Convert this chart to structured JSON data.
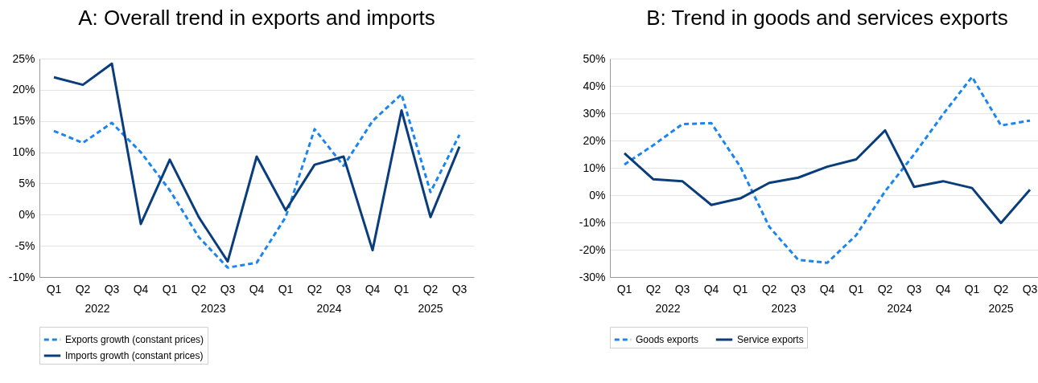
{
  "chart_data": [
    {
      "type": "line",
      "title": "A: Overall trend in exports and imports",
      "categories": [
        "Q1",
        "Q2",
        "Q3",
        "Q4",
        "Q1",
        "Q2",
        "Q3",
        "Q4",
        "Q1",
        "Q2",
        "Q3",
        "Q4",
        "Q1",
        "Q2",
        "Q3"
      ],
      "annotations": [
        "2022",
        "2023",
        "2024",
        "2025"
      ],
      "series": [
        {
          "name": "Exports growth (constant prices)",
          "color": "#1a85f0",
          "line_style": "dashed",
          "values": [
            13.4,
            11.5,
            14.7,
            10.0,
            3.9,
            -3.6,
            -8.5,
            -7.7,
            -0.4,
            13.7,
            7.8,
            15.0,
            19.3,
            3.6,
            12.8
          ]
        },
        {
          "name": "Imports growth (constant prices)",
          "color": "#0a3d7c",
          "line_style": "solid",
          "values": [
            22.0,
            20.8,
            24.2,
            -1.5,
            8.8,
            -0.4,
            -7.5,
            9.3,
            0.7,
            8.0,
            9.3,
            -5.7,
            16.7,
            -0.4,
            10.9
          ]
        }
      ],
      "ylim": [
        -10,
        25
      ],
      "yticks": [
        {
          "value": -10,
          "label": "-10%"
        },
        {
          "value": -5,
          "label": "-5%"
        },
        {
          "value": 0,
          "label": "0%"
        },
        {
          "value": 5,
          "label": "5%"
        },
        {
          "value": 10,
          "label": "10%"
        },
        {
          "value": 15,
          "label": "15%"
        },
        {
          "value": 20,
          "label": "20%"
        },
        {
          "value": 25,
          "label": "25%"
        }
      ],
      "grid": "y",
      "legend": "bottom",
      "marker": "none"
    },
    {
      "type": "line",
      "title": "B: Trend in goods and services exports",
      "categories": [
        "Q1",
        "Q2",
        "Q3",
        "Q4",
        "Q1",
        "Q2",
        "Q3",
        "Q4",
        "Q1",
        "Q2",
        "Q3",
        "Q4",
        "Q1",
        "Q2",
        "Q3"
      ],
      "annotations": [
        "2022",
        "2023",
        "2024",
        "2025"
      ],
      "series": [
        {
          "name": "Goods exports",
          "color": "#1a85f0",
          "line_style": "dashed",
          "values": [
            11.2,
            18.3,
            26.0,
            26.4,
            10.4,
            -11.6,
            -23.7,
            -24.8,
            -14.7,
            1.4,
            14.9,
            29.6,
            43.3,
            25.5,
            27.3
          ]
        },
        {
          "name": "Service exports",
          "color": "#0a3d7c",
          "line_style": "solid",
          "values": [
            15.3,
            5.8,
            5.1,
            -3.6,
            -1.2,
            4.5,
            6.4,
            10.4,
            13.1,
            23.7,
            3.0,
            5.1,
            2.6,
            -10.2,
            2.0
          ]
        }
      ],
      "ylim": [
        -30,
        50
      ],
      "yticks": [
        {
          "value": -30,
          "label": "-30%"
        },
        {
          "value": -20,
          "label": "-20%"
        },
        {
          "value": -10,
          "label": "-10%"
        },
        {
          "value": 0,
          "label": "0%"
        },
        {
          "value": 10,
          "label": "10%"
        },
        {
          "value": 20,
          "label": "20%"
        },
        {
          "value": 30,
          "label": "30%"
        },
        {
          "value": 40,
          "label": "40%"
        },
        {
          "value": 50,
          "label": "50%"
        }
      ],
      "grid": "y",
      "legend": "bottom",
      "marker": "none"
    }
  ]
}
